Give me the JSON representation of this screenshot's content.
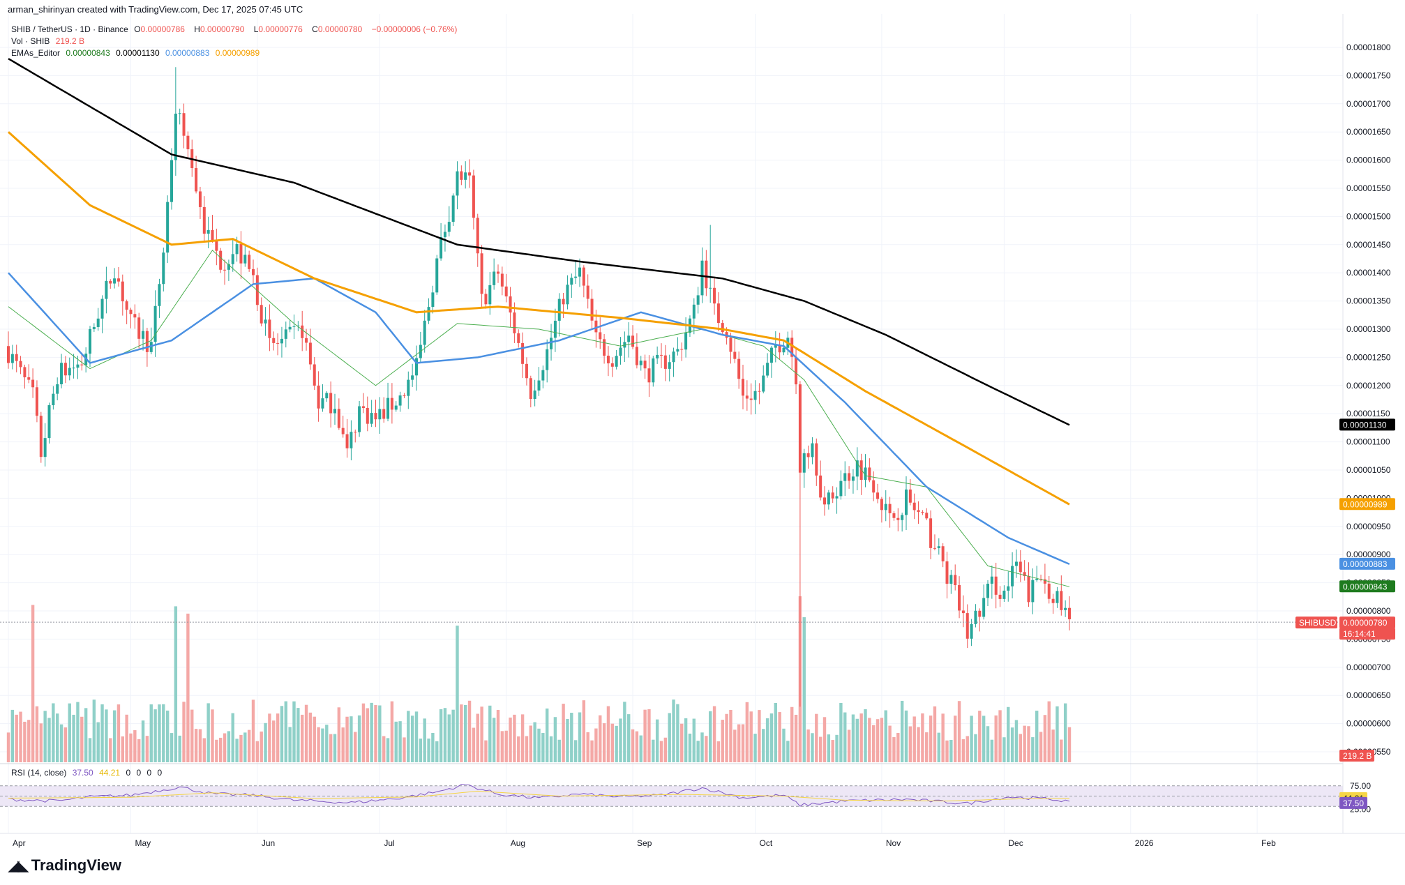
{
  "attribution": "arman_shirinyan created with TradingView.com, Dec 17, 2025 07:45 UTC",
  "legend": {
    "symbol": "SHIB / TetherUS · 1D · Binance",
    "ohlc": [
      {
        "k": "O",
        "v": "0.00000786"
      },
      {
        "k": "H",
        "v": "0.00000790"
      },
      {
        "k": "L",
        "v": "0.00000776"
      },
      {
        "k": "C",
        "v": "0.00000780"
      }
    ],
    "change": "−0.00000006 (−0.76%)",
    "vol_label": "Vol · SHIB",
    "vol_value": "219.2 B",
    "ema_label": "EMAs_Editor",
    "ema_values": [
      {
        "v": "0.00000843",
        "color": "#1e7b1e"
      },
      {
        "v": "0.00001130",
        "color": "#000000"
      },
      {
        "v": "0.00000883",
        "color": "#4a90e2"
      },
      {
        "v": "0.00000989",
        "color": "#f5a000"
      }
    ]
  },
  "rsi": {
    "label": "RSI (14, close)",
    "value": "37.50",
    "ma": "44.21",
    "extra": [
      "0",
      "0",
      "0",
      "0"
    ],
    "upper": "75.00",
    "lower": "25.00",
    "value_color": "#7e57c2",
    "ma_color": "#f5d547"
  },
  "badges": {
    "ema200": {
      "text": "0.00001130",
      "color": "#000000"
    },
    "ema100": {
      "text": "0.00000989",
      "color": "#f5a000"
    },
    "ema50": {
      "text": "0.00000883",
      "color": "#4a90e2"
    },
    "ema20": {
      "text": "0.00000843",
      "color": "#1e7b1e"
    },
    "ticker": "SHIBUSDT",
    "price": "0.00000780",
    "countdown": "16:14:41",
    "volume": "219.2 B",
    "rsi_ma": "44.21",
    "rsi_val": "37.50"
  },
  "brand": "TradingView",
  "colors": {
    "up": "#26a69a",
    "down": "#ef5350",
    "up_vol": "#8fd0c8",
    "down_vol": "#f4a8a6",
    "rsi_band": "#ede7f6"
  },
  "chart_data": {
    "type": "candlestick",
    "y_ticks": [
      "0.00001800",
      "0.00001750",
      "0.00001700",
      "0.00001650",
      "0.00001600",
      "0.00001550",
      "0.00001500",
      "0.00001450",
      "0.00001400",
      "0.00001350",
      "0.00001300",
      "0.00001250",
      "0.00001200",
      "0.00001150",
      "0.00001100",
      "0.00001050",
      "0.00001000",
      "0.00000950",
      "0.00000900",
      "0.00000850",
      "0.00000800",
      "0.00000750",
      "0.00000700",
      "0.00000650",
      "0.00000600",
      "0.00000550"
    ],
    "y_tick_values": [
      1800,
      1750,
      1700,
      1650,
      1600,
      1550,
      1500,
      1450,
      1400,
      1350,
      1300,
      1250,
      1200,
      1150,
      1100,
      1050,
      1000,
      950,
      900,
      850,
      800,
      750,
      700,
      650,
      600,
      550
    ],
    "x_ticks": [
      "Apr",
      "May",
      "Jun",
      "Jul",
      "Aug",
      "Sep",
      "Oct",
      "Nov",
      "Dec",
      "2026",
      "Feb"
    ],
    "ohlc_anchors": [
      {
        "d": 0,
        "c": 1260
      },
      {
        "d": 6,
        "c": 1180
      },
      {
        "d": 8,
        "c": 1080
      },
      {
        "d": 12,
        "c": 1220
      },
      {
        "d": 18,
        "c": 1240
      },
      {
        "d": 22,
        "c": 1330
      },
      {
        "d": 26,
        "c": 1410
      },
      {
        "d": 30,
        "c": 1310
      },
      {
        "d": 35,
        "c": 1270
      },
      {
        "d": 38,
        "c": 1440
      },
      {
        "d": 41,
        "c": 1690
      },
      {
        "d": 44,
        "c": 1620
      },
      {
        "d": 48,
        "c": 1480
      },
      {
        "d": 52,
        "c": 1420
      },
      {
        "d": 56,
        "c": 1440
      },
      {
        "d": 60,
        "c": 1390
      },
      {
        "d": 64,
        "c": 1270
      },
      {
        "d": 68,
        "c": 1280
      },
      {
        "d": 72,
        "c": 1300
      },
      {
        "d": 76,
        "c": 1170
      },
      {
        "d": 80,
        "c": 1170
      },
      {
        "d": 83,
        "c": 1080
      },
      {
        "d": 86,
        "c": 1160
      },
      {
        "d": 90,
        "c": 1140
      },
      {
        "d": 96,
        "c": 1180
      },
      {
        "d": 100,
        "c": 1230
      },
      {
        "d": 105,
        "c": 1420
      },
      {
        "d": 110,
        "c": 1570
      },
      {
        "d": 113,
        "c": 1560
      },
      {
        "d": 116,
        "c": 1350
      },
      {
        "d": 120,
        "c": 1400
      },
      {
        "d": 124,
        "c": 1300
      },
      {
        "d": 128,
        "c": 1190
      },
      {
        "d": 132,
        "c": 1260
      },
      {
        "d": 136,
        "c": 1360
      },
      {
        "d": 140,
        "c": 1400
      },
      {
        "d": 144,
        "c": 1280
      },
      {
        "d": 148,
        "c": 1250
      },
      {
        "d": 152,
        "c": 1290
      },
      {
        "d": 156,
        "c": 1220
      },
      {
        "d": 160,
        "c": 1240
      },
      {
        "d": 164,
        "c": 1260
      },
      {
        "d": 168,
        "c": 1330
      },
      {
        "d": 170,
        "c": 1420
      },
      {
        "d": 173,
        "c": 1330
      },
      {
        "d": 176,
        "c": 1300
      },
      {
        "d": 180,
        "c": 1180
      },
      {
        "d": 184,
        "c": 1190
      },
      {
        "d": 188,
        "c": 1270
      },
      {
        "d": 191,
        "c": 1290
      },
      {
        "d": 193,
        "c": 1220
      },
      {
        "d": 194,
        "c": 1060
      },
      {
        "d": 197,
        "c": 1100
      },
      {
        "d": 200,
        "c": 980
      },
      {
        "d": 204,
        "c": 1030
      },
      {
        "d": 208,
        "c": 1060
      },
      {
        "d": 212,
        "c": 1030
      },
      {
        "d": 216,
        "c": 960
      },
      {
        "d": 220,
        "c": 1000
      },
      {
        "d": 224,
        "c": 960
      },
      {
        "d": 228,
        "c": 900
      },
      {
        "d": 232,
        "c": 830
      },
      {
        "d": 235,
        "c": 760
      },
      {
        "d": 238,
        "c": 800
      },
      {
        "d": 241,
        "c": 850
      },
      {
        "d": 244,
        "c": 830
      },
      {
        "d": 247,
        "c": 880
      },
      {
        "d": 250,
        "c": 830
      },
      {
        "d": 253,
        "c": 860
      },
      {
        "d": 256,
        "c": 830
      },
      {
        "d": 260,
        "c": 780
      }
    ],
    "ema_anchors": {
      "ema20": [
        {
          "d": 0,
          "v": 1340
        },
        {
          "d": 20,
          "v": 1230
        },
        {
          "d": 35,
          "v": 1280
        },
        {
          "d": 50,
          "v": 1440
        },
        {
          "d": 70,
          "v": 1310
        },
        {
          "d": 90,
          "v": 1200
        },
        {
          "d": 110,
          "v": 1310
        },
        {
          "d": 130,
          "v": 1300
        },
        {
          "d": 150,
          "v": 1270
        },
        {
          "d": 170,
          "v": 1300
        },
        {
          "d": 185,
          "v": 1270
        },
        {
          "d": 195,
          "v": 1210
        },
        {
          "d": 210,
          "v": 1040
        },
        {
          "d": 225,
          "v": 1020
        },
        {
          "d": 240,
          "v": 880
        },
        {
          "d": 260,
          "v": 843
        }
      ],
      "ema50": [
        {
          "d": 0,
          "v": 1400
        },
        {
          "d": 20,
          "v": 1240
        },
        {
          "d": 40,
          "v": 1280
        },
        {
          "d": 60,
          "v": 1380
        },
        {
          "d": 75,
          "v": 1390
        },
        {
          "d": 90,
          "v": 1330
        },
        {
          "d": 100,
          "v": 1240
        },
        {
          "d": 115,
          "v": 1250
        },
        {
          "d": 135,
          "v": 1280
        },
        {
          "d": 155,
          "v": 1330
        },
        {
          "d": 175,
          "v": 1290
        },
        {
          "d": 190,
          "v": 1270
        },
        {
          "d": 205,
          "v": 1170
        },
        {
          "d": 225,
          "v": 1020
        },
        {
          "d": 245,
          "v": 930
        },
        {
          "d": 260,
          "v": 883
        }
      ],
      "ema100": [
        {
          "d": 0,
          "v": 1650
        },
        {
          "d": 20,
          "v": 1520
        },
        {
          "d": 40,
          "v": 1450
        },
        {
          "d": 55,
          "v": 1460
        },
        {
          "d": 75,
          "v": 1390
        },
        {
          "d": 100,
          "v": 1330
        },
        {
          "d": 120,
          "v": 1340
        },
        {
          "d": 150,
          "v": 1320
        },
        {
          "d": 175,
          "v": 1300
        },
        {
          "d": 190,
          "v": 1280
        },
        {
          "d": 210,
          "v": 1190
        },
        {
          "d": 235,
          "v": 1090
        },
        {
          "d": 260,
          "v": 989
        }
      ],
      "ema200": [
        {
          "d": 0,
          "v": 1780
        },
        {
          "d": 40,
          "v": 1610
        },
        {
          "d": 70,
          "v": 1560
        },
        {
          "d": 110,
          "v": 1450
        },
        {
          "d": 140,
          "v": 1420
        },
        {
          "d": 175,
          "v": 1390
        },
        {
          "d": 195,
          "v": 1350
        },
        {
          "d": 215,
          "v": 1290
        },
        {
          "d": 240,
          "v": 1200
        },
        {
          "d": 260,
          "v": 1130
        }
      ]
    },
    "rsi_anchors": [
      {
        "d": 0,
        "v": 42
      },
      {
        "d": 12,
        "v": 38
      },
      {
        "d": 20,
        "v": 48
      },
      {
        "d": 30,
        "v": 52
      },
      {
        "d": 42,
        "v": 72
      },
      {
        "d": 50,
        "v": 55
      },
      {
        "d": 60,
        "v": 52
      },
      {
        "d": 70,
        "v": 40
      },
      {
        "d": 84,
        "v": 34
      },
      {
        "d": 95,
        "v": 44
      },
      {
        "d": 105,
        "v": 60
      },
      {
        "d": 112,
        "v": 78
      },
      {
        "d": 120,
        "v": 55
      },
      {
        "d": 130,
        "v": 45
      },
      {
        "d": 140,
        "v": 55
      },
      {
        "d": 150,
        "v": 48
      },
      {
        "d": 160,
        "v": 52
      },
      {
        "d": 170,
        "v": 70
      },
      {
        "d": 180,
        "v": 46
      },
      {
        "d": 190,
        "v": 52
      },
      {
        "d": 194,
        "v": 28
      },
      {
        "d": 205,
        "v": 38
      },
      {
        "d": 220,
        "v": 42
      },
      {
        "d": 235,
        "v": 32
      },
      {
        "d": 245,
        "v": 48
      },
      {
        "d": 255,
        "v": 43
      },
      {
        "d": 260,
        "v": 37.5
      }
    ],
    "rsi_ma_anchors": [
      {
        "d": 0,
        "v": 45
      },
      {
        "d": 30,
        "v": 47
      },
      {
        "d": 50,
        "v": 58
      },
      {
        "d": 75,
        "v": 44
      },
      {
        "d": 100,
        "v": 48
      },
      {
        "d": 115,
        "v": 62
      },
      {
        "d": 135,
        "v": 50
      },
      {
        "d": 165,
        "v": 54
      },
      {
        "d": 190,
        "v": 50
      },
      {
        "d": 205,
        "v": 40
      },
      {
        "d": 230,
        "v": 38
      },
      {
        "d": 250,
        "v": 44
      },
      {
        "d": 260,
        "v": 44.2
      }
    ]
  }
}
